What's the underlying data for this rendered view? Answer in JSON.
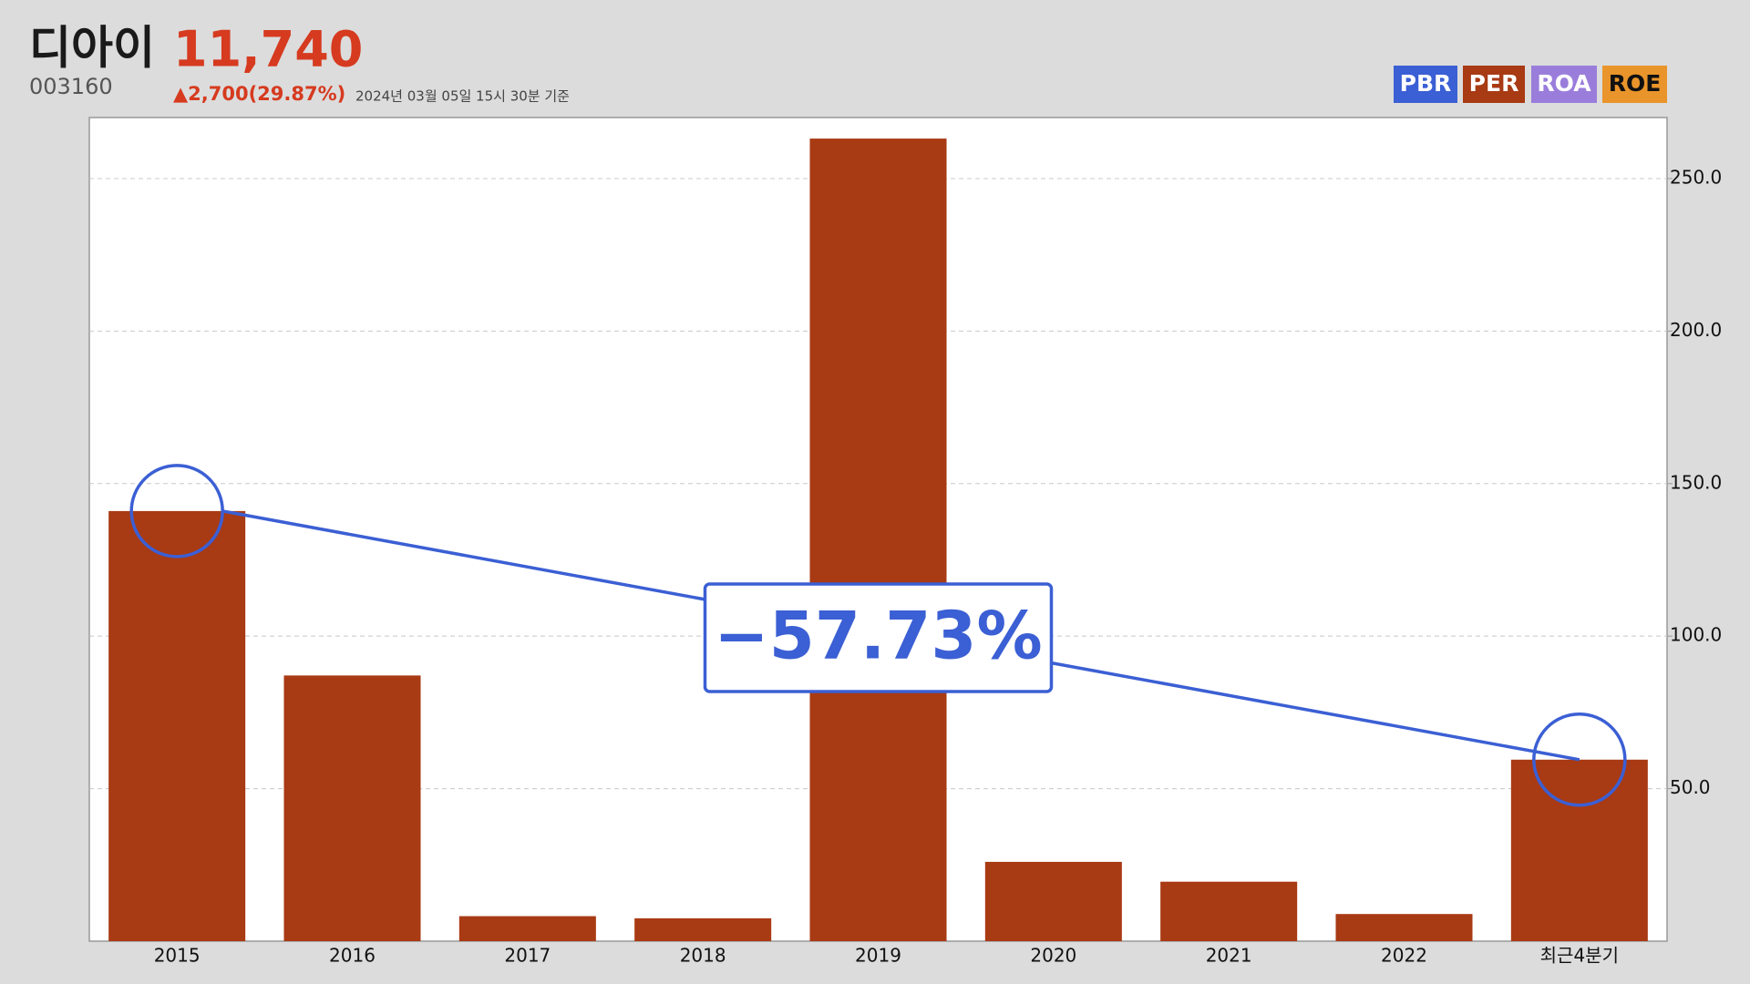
{
  "header": {
    "name": "디아이",
    "price": "11,740",
    "code": "003160",
    "change": "▲2,700(29.87%)",
    "timestamp": "2024년 03월 05일 15시 30분 기준"
  },
  "legend_buttons": [
    {
      "label": "PBR",
      "color": "#3b5fd4",
      "text_color": "#ffffff"
    },
    {
      "label": "PER",
      "color": "#a83a14",
      "text_color": "#ffffff"
    },
    {
      "label": "ROA",
      "color": "#9a7ddb",
      "text_color": "#ffffff"
    },
    {
      "label": "ROE",
      "color": "#e9952b",
      "text_color": "#111111"
    }
  ],
  "chart_data": {
    "type": "bar",
    "categories": [
      "2015",
      "2016",
      "2017",
      "2018",
      "2019",
      "2020",
      "2021",
      "2022",
      "최근4분기"
    ],
    "values": [
      141,
      87.1,
      8.2,
      7.5,
      263.1,
      26,
      19.5,
      8.9,
      59.5
    ],
    "color": "#a83a14",
    "ylim": [
      0,
      270
    ],
    "yticks": [
      {
        "value": 50,
        "label": "50.0"
      },
      {
        "value": 100,
        "label": "100.0"
      },
      {
        "value": 150,
        "label": "150.0"
      },
      {
        "value": 200,
        "label": "200.0"
      },
      {
        "value": 250,
        "label": "250.0"
      }
    ],
    "grid": true,
    "annotation": {
      "text": "−57.73%",
      "color": "#3b5fd4"
    }
  }
}
